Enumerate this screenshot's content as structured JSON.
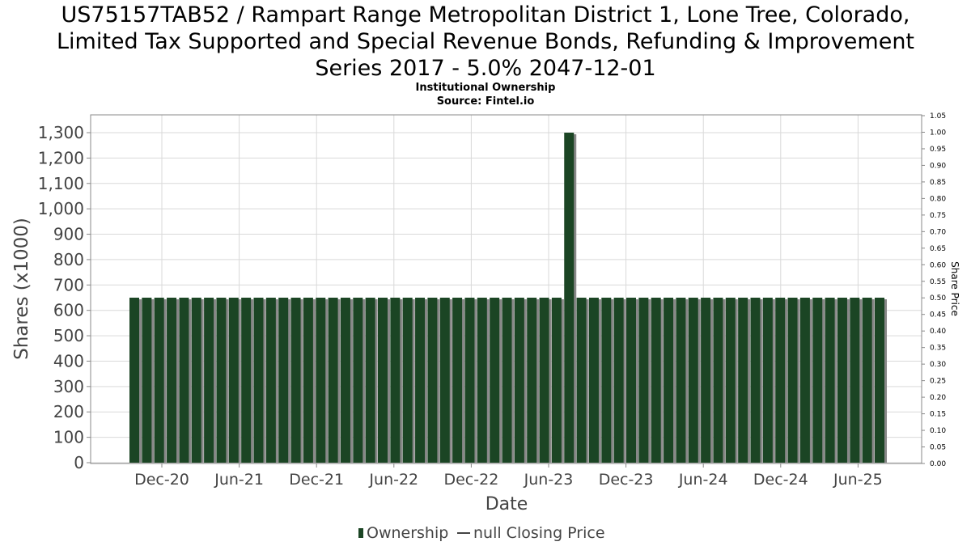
{
  "title_lines": [
    "US75157TAB52 / Rampart Range Metropolitan District 1, Lone Tree, Colorado,",
    "Limited Tax Supported and Special Revenue Bonds, Refunding & Improvement",
    "Series 2017 - 5.0% 2047-12-01"
  ],
  "subtitle": "Institutional Ownership",
  "source": "Source: Fintel.io",
  "colors": {
    "bar": "#1b4524",
    "bar_shadow": "#888888",
    "grid": "#d9d9d9",
    "axis": "#888888"
  },
  "chart_data": {
    "type": "bar",
    "xlabel": "Date",
    "ylabel": "Shares (x1000)",
    "y2label": "Share Price",
    "ylim": [
      0,
      1300
    ],
    "y_ticks": [
      "0",
      "100",
      "200",
      "300",
      "400",
      "500",
      "600",
      "700",
      "800",
      "900",
      "1,000",
      "1,100",
      "1,200",
      "1,300"
    ],
    "y2lim": [
      0,
      1.05
    ],
    "y2_ticks": [
      "0.00",
      "0.05",
      "0.10",
      "0.15",
      "0.20",
      "0.25",
      "0.30",
      "0.35",
      "0.40",
      "0.45",
      "0.50",
      "0.55",
      "0.60",
      "0.65",
      "0.70",
      "0.75",
      "0.80",
      "0.85",
      "0.90",
      "0.95",
      "1.00",
      "1.05"
    ],
    "x_ticks": [
      "Dec-20",
      "Jun-21",
      "Dec-21",
      "Jun-22",
      "Dec-22",
      "Jun-23",
      "Dec-23",
      "Jun-24",
      "Dec-24",
      "Jun-25"
    ],
    "grid": true,
    "legend_position": "bottom-center",
    "legend": [
      "Ownership",
      "null Closing Price"
    ],
    "series": [
      {
        "name": "Ownership",
        "values": [
          650,
          650,
          650,
          650,
          650,
          650,
          650,
          650,
          650,
          650,
          650,
          650,
          650,
          650,
          650,
          650,
          650,
          650,
          650,
          650,
          650,
          650,
          650,
          650,
          650,
          650,
          650,
          650,
          650,
          650,
          650,
          650,
          650,
          650,
          650,
          1300,
          650,
          650,
          650,
          650,
          650,
          650,
          650,
          650,
          650,
          650,
          650,
          650,
          650,
          650,
          650,
          650,
          650,
          650,
          650,
          650,
          650,
          650,
          650,
          650,
          650
        ]
      }
    ]
  }
}
